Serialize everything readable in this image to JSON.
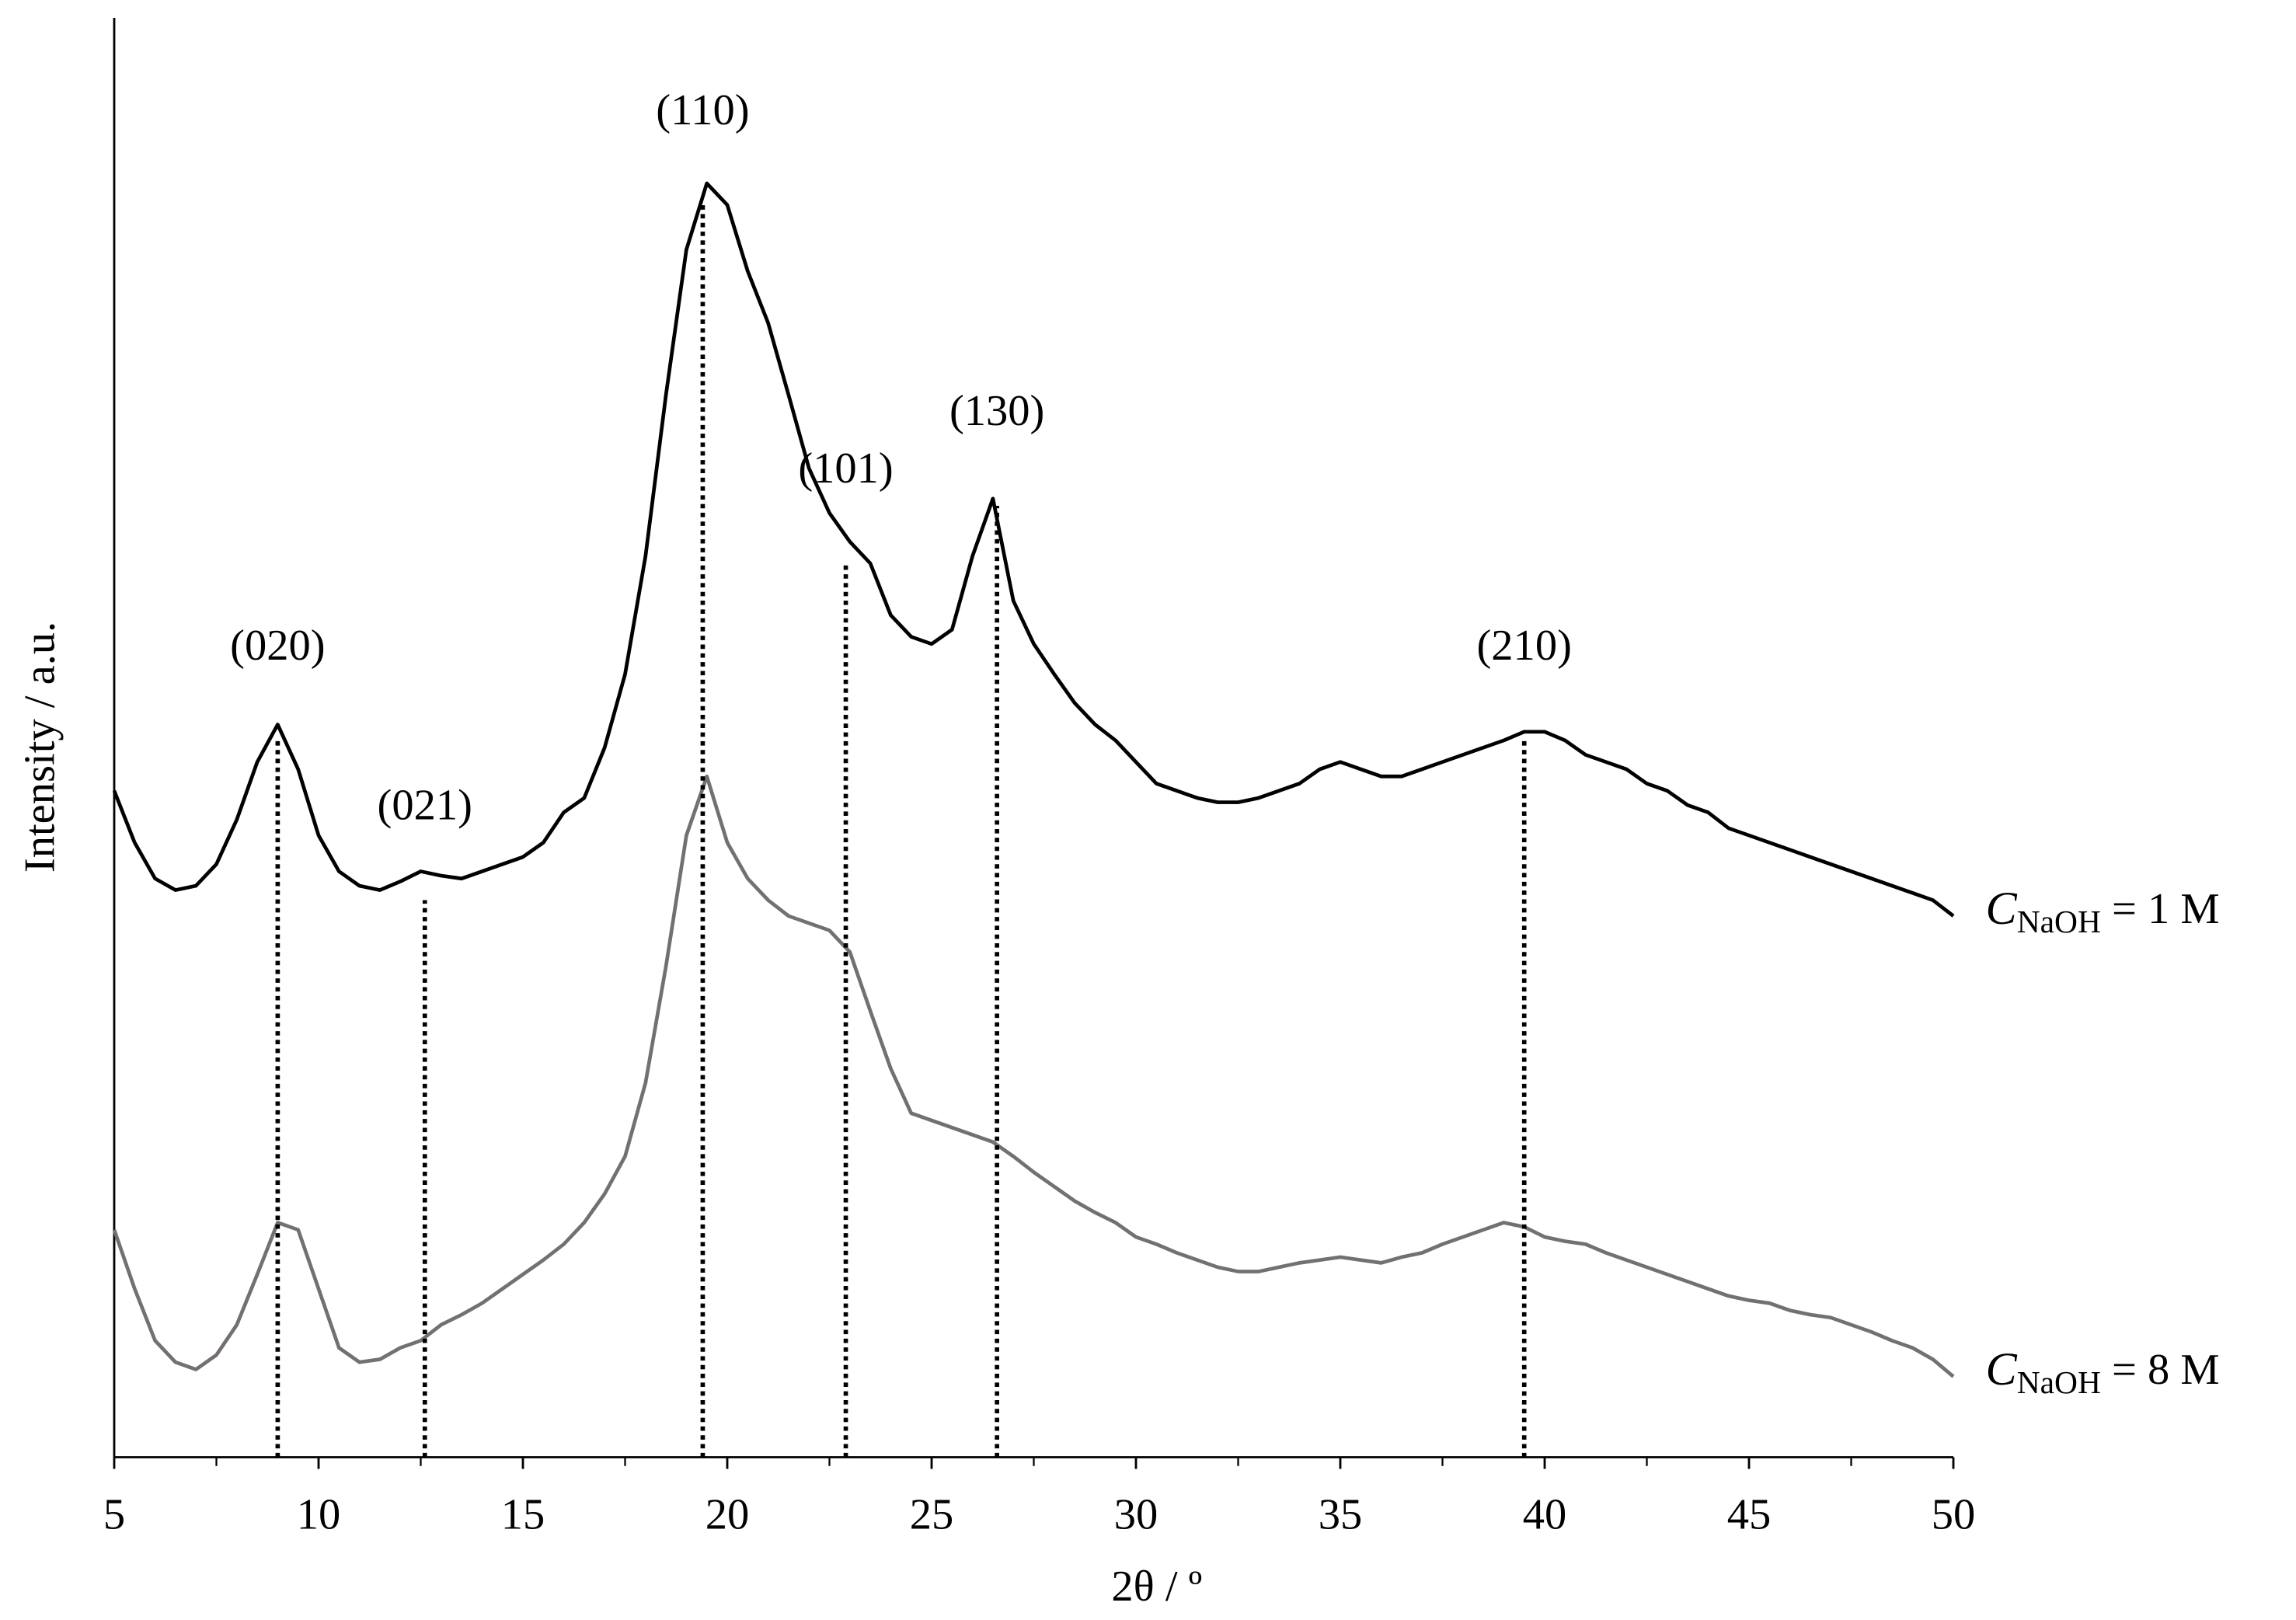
{
  "chart_data": {
    "type": "line",
    "x_label": "2θ / º",
    "y_label": "Intensity / a.u.",
    "xlim": [
      5,
      50
    ],
    "xticks": [
      5,
      10,
      15,
      20,
      25,
      30,
      35,
      40,
      45,
      50
    ],
    "ylim": [
      0,
      100
    ],
    "x": [
      5,
      5.5,
      6,
      6.5,
      7,
      7.5,
      8,
      8.5,
      9,
      9.5,
      10,
      10.5,
      11,
      11.5,
      12,
      12.5,
      13,
      13.5,
      14,
      14.5,
      15,
      15.5,
      16,
      16.5,
      17,
      17.5,
      18,
      18.5,
      19,
      19.5,
      20,
      20.5,
      21,
      21.5,
      22,
      22.5,
      23,
      23.5,
      24,
      24.5,
      25,
      25.5,
      26,
      26.5,
      27,
      27.5,
      28,
      28.5,
      29,
      29.5,
      30,
      30.5,
      31,
      31.5,
      32,
      32.5,
      33,
      33.5,
      34,
      34.5,
      35,
      35.5,
      36,
      36.5,
      37,
      37.5,
      38,
      38.5,
      39,
      39.5,
      40,
      40.5,
      41,
      41.5,
      42,
      42.5,
      43,
      43.5,
      44,
      44.5,
      45,
      45.5,
      46,
      46.5,
      47,
      47.5,
      48,
      48.5,
      49,
      49.5,
      50
    ],
    "series": [
      {
        "name": "CNaOH = 1 M",
        "color": "#000000",
        "values": [
          46.3,
          42.7,
          40.2,
          39.4,
          39.7,
          41.2,
          44.3,
          48.3,
          50.9,
          47.8,
          43.2,
          40.7,
          39.7,
          39.4,
          40.0,
          40.7,
          40.4,
          40.2,
          40.7,
          41.2,
          41.7,
          42.7,
          44.8,
          45.8,
          49.3,
          54.4,
          62.6,
          73.8,
          83.9,
          88.5,
          87.0,
          82.4,
          78.8,
          73.8,
          68.7,
          65.6,
          63.6,
          62.1,
          58.5,
          57.0,
          56.5,
          57.5,
          62.6,
          66.6,
          59.5,
          56.5,
          54.4,
          52.4,
          50.9,
          49.8,
          48.3,
          46.8,
          46.3,
          45.8,
          45.5,
          45.5,
          45.8,
          46.3,
          46.8,
          47.8,
          48.3,
          47.8,
          47.3,
          47.3,
          47.8,
          48.3,
          48.8,
          49.3,
          49.8,
          50.4,
          50.4,
          49.8,
          48.8,
          48.3,
          47.8,
          46.8,
          46.3,
          45.3,
          44.8,
          43.7,
          43.2,
          42.7,
          42.2,
          41.7,
          41.2,
          40.7,
          40.2,
          39.7,
          39.2,
          38.7,
          37.6
        ]
      },
      {
        "name": "CNaOH = 8 M",
        "color": "#757070",
        "values": [
          15.8,
          11.7,
          8.1,
          6.6,
          6.1,
          7.1,
          9.2,
          12.7,
          16.3,
          15.8,
          11.7,
          7.6,
          6.6,
          6.8,
          7.6,
          8.1,
          9.2,
          9.9,
          10.7,
          11.7,
          12.7,
          13.7,
          14.8,
          16.3,
          18.3,
          20.9,
          26.0,
          34.1,
          43.2,
          47.3,
          42.7,
          40.2,
          38.7,
          37.6,
          37.1,
          36.6,
          35.1,
          31.0,
          27.0,
          23.9,
          23.4,
          22.9,
          22.4,
          21.9,
          20.9,
          19.8,
          18.8,
          17.8,
          17.0,
          16.3,
          15.3,
          14.8,
          14.2,
          13.7,
          13.2,
          12.9,
          12.9,
          13.2,
          13.5,
          13.7,
          13.9,
          13.7,
          13.5,
          13.9,
          14.2,
          14.8,
          15.3,
          15.8,
          16.3,
          16.0,
          15.3,
          15.0,
          14.8,
          14.2,
          13.7,
          13.2,
          12.7,
          12.2,
          11.7,
          11.2,
          10.9,
          10.7,
          10.2,
          9.9,
          9.7,
          9.2,
          8.7,
          8.1,
          7.6,
          6.8,
          5.6
        ]
      }
    ],
    "peaks": [
      {
        "label": "(020)",
        "x": 9.0,
        "y": 49.8
      },
      {
        "label": "(021)",
        "x": 12.6,
        "y": 38.7
      },
      {
        "label": "(110)",
        "x": 19.4,
        "y": 87.0
      },
      {
        "label": "(101)",
        "x": 22.9,
        "y": 62.1
      },
      {
        "label": "(130)",
        "x": 26.6,
        "y": 66.1
      },
      {
        "label": "(210)",
        "x": 39.5,
        "y": 49.8
      }
    ]
  }
}
